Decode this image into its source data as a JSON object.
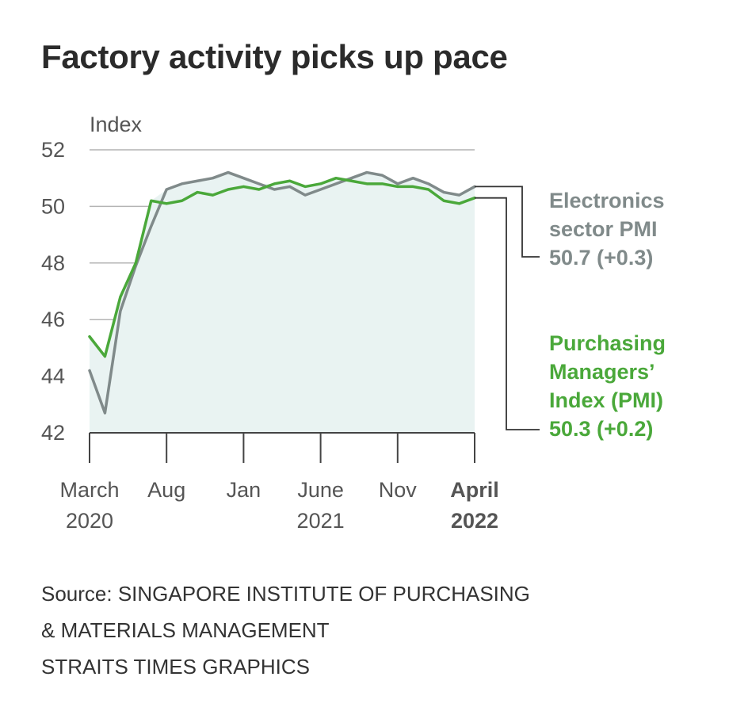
{
  "title": "Factory activity picks up pace",
  "chart_data": {
    "type": "line",
    "ylabel": "Index",
    "ylim": [
      42,
      52
    ],
    "yticks": [
      42,
      44,
      46,
      48,
      50,
      52
    ],
    "x_count": 26,
    "x_ticks": [
      {
        "index": 0,
        "lines": [
          "March",
          "2020"
        ],
        "bold": false
      },
      {
        "index": 5,
        "lines": [
          "Aug"
        ],
        "bold": false
      },
      {
        "index": 10,
        "lines": [
          "Jan"
        ],
        "bold": false
      },
      {
        "index": 15,
        "lines": [
          "June",
          "2021"
        ],
        "bold": false
      },
      {
        "index": 20,
        "lines": [
          "Nov"
        ],
        "bold": false
      },
      {
        "index": 25,
        "lines": [
          "April",
          "2022"
        ],
        "bold": true
      }
    ],
    "series": [
      {
        "key": "electronics",
        "color": "#808a8a",
        "label_lines": [
          "Electronics",
          "sector PMI",
          "50.7 (+0.3)"
        ],
        "values": [
          44.2,
          42.7,
          46.3,
          47.9,
          49.3,
          50.6,
          50.8,
          50.9,
          51.0,
          51.2,
          51.0,
          50.8,
          50.6,
          50.7,
          50.4,
          50.6,
          50.8,
          51.0,
          51.2,
          51.1,
          50.8,
          51.0,
          50.8,
          50.5,
          50.4,
          50.7
        ]
      },
      {
        "key": "pmi",
        "color": "#4aa83a",
        "label_lines": [
          "Purchasing",
          "Managers’",
          "Index (PMI)",
          "50.3 (+0.2)"
        ],
        "values": [
          45.4,
          44.7,
          46.8,
          48.0,
          50.2,
          50.1,
          50.2,
          50.5,
          50.4,
          50.6,
          50.7,
          50.6,
          50.8,
          50.9,
          50.7,
          50.8,
          51.0,
          50.9,
          50.8,
          50.8,
          50.7,
          50.7,
          50.6,
          50.2,
          50.1,
          50.3
        ]
      }
    ]
  },
  "source": {
    "lines": [
      "Source: SINGAPORE INSTITUTE OF PURCHASING",
      "& MATERIALS MANAGEMENT",
      "STRAITS TIMES GRAPHICS"
    ]
  }
}
